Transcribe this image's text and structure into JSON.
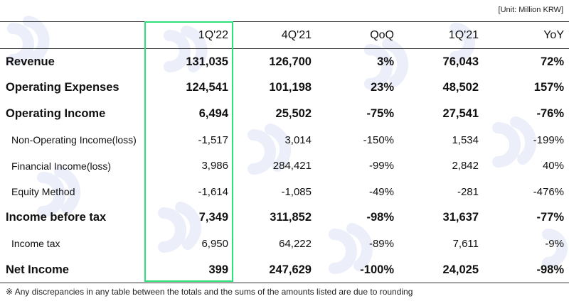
{
  "unit_note": "[Unit: Million KRW]",
  "columns": [
    "",
    "1Q'22",
    "4Q'21",
    "QoQ",
    "1Q'21",
    "YoY"
  ],
  "rows": [
    {
      "label": "Revenue",
      "values": [
        "131,035",
        "126,700",
        "3%",
        "76,043",
        "72%"
      ]
    },
    {
      "label": "Operating Expenses",
      "values": [
        "124,541",
        "101,198",
        "23%",
        "48,502",
        "157%"
      ]
    },
    {
      "label": "Operating Income",
      "values": [
        "6,494",
        "25,502",
        "-75%",
        "27,541",
        "-76%"
      ]
    },
    {
      "label": "Non-Operating Income(loss)",
      "values": [
        "-1,517",
        "3,014",
        "-150%",
        "1,534",
        "-199%"
      ]
    },
    {
      "label": "Financial Income(loss)",
      "values": [
        "3,986",
        "284,421",
        "-99%",
        "2,842",
        "40%"
      ]
    },
    {
      "label": "Equity Method",
      "values": [
        "-1,614",
        "-1,085",
        "-49%",
        "-281",
        "-476%"
      ]
    },
    {
      "label": "Income before tax",
      "values": [
        "7,349",
        "311,852",
        "-98%",
        "31,637",
        "-77%"
      ]
    },
    {
      "label": "Income tax",
      "values": [
        "6,950",
        "64,222",
        "-89%",
        "7,611",
        "-9%"
      ]
    },
    {
      "label": "Net Income",
      "values": [
        "399",
        "247,629",
        "-100%",
        "24,025",
        "-98%"
      ]
    }
  ],
  "footnote": "※  Any discrepancies in any table between the totals and the sums of the amounts listed are due to rounding",
  "colors": {
    "highlight": "#2ee07a",
    "watermark": "#eef0fb"
  }
}
